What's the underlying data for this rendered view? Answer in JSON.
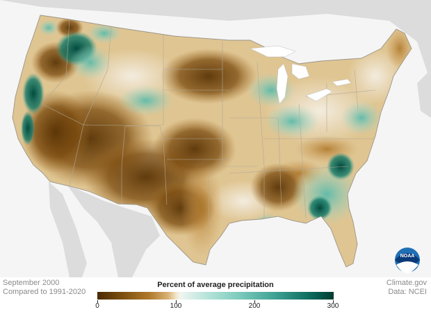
{
  "map": {
    "title": "Percent of average precipitation",
    "period": "September 2000",
    "baseline": "Compared to 1991-2020",
    "legend": {
      "ticks": [
        "0",
        "100",
        "200",
        "300"
      ],
      "colors": {
        "very_dry": "#4a2a04",
        "dry": "#a46b1f",
        "near_normal": "#f3ede0",
        "wet": "#6cc3b3",
        "very_wet": "#013c32"
      }
    },
    "credit": "Climate.gov",
    "source": "Data: NCEI",
    "logo_text": "NOAA",
    "colors": {
      "background": "#f5f5f5",
      "land_outside": "#dcdcdc",
      "water": "#ffffff",
      "borders": "#b0a898"
    }
  }
}
